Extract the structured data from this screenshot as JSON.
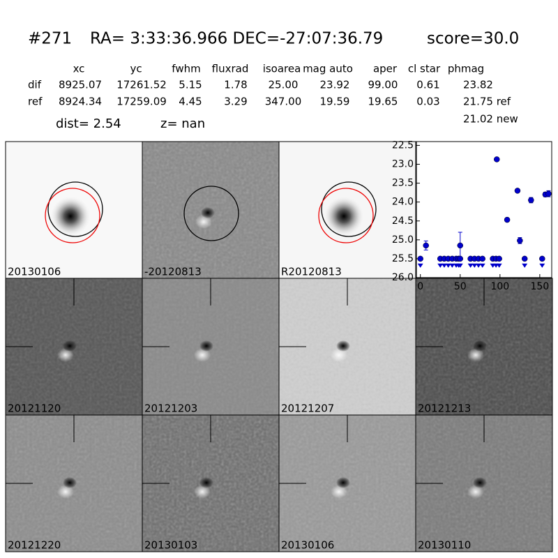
{
  "header": {
    "id": "#271",
    "coords": "RA= 3:33:36.966 DEC=-27:07:36.79",
    "score": "score=30.0"
  },
  "table": {
    "columns": [
      "xc",
      "yc",
      "fwhm",
      "fluxrad",
      "isoarea",
      "mag auto",
      "aper",
      "cl star",
      "phmag"
    ],
    "rows": [
      [
        "dif",
        "8925.07",
        "17261.52",
        "5.15",
        "1.78",
        "25.00",
        "23.92",
        "99.00",
        "0.61",
        "23.82"
      ],
      [
        "ref",
        "8924.34",
        "17259.09",
        "4.45",
        "3.29",
        "347.00",
        "19.59",
        "19.65",
        "0.03",
        "21.75 ref"
      ]
    ],
    "extra": "21.02 new"
  },
  "dist": "dist=  2.54",
  "z": "z=   nan",
  "panels": [
    {
      "label": "20130106",
      "color": "#000000"
    },
    {
      "label": "-20120813",
      "color": "#000000"
    },
    {
      "label": "R20120813",
      "color": "#000000"
    },
    {
      "label": "20121120",
      "color": "#000000"
    },
    {
      "label": "20121203",
      "color": "#000000"
    },
    {
      "label": "20121207",
      "color": "#000000"
    },
    {
      "label": "20121213",
      "color": "#000000"
    },
    {
      "label": "20121220",
      "color": "#000000"
    },
    {
      "label": "20130103",
      "color": "#000000"
    },
    {
      "label": "20130106",
      "color": "#ff0000"
    },
    {
      "label": "20130110",
      "color": "#000000"
    }
  ],
  "chart_data": {
    "type": "scatter",
    "color": "#0000cc",
    "xlim": [
      -5,
      165
    ],
    "xticks": [
      0,
      50,
      100,
      150
    ],
    "ylim": [
      26.0,
      22.4
    ],
    "yticks": [
      22.5,
      {
        "value": 23.0,
        "label": "23.0"
      },
      23.5,
      {
        "value": 24.0,
        "label": "24.0"
      },
      24.5,
      {
        "value": 25.0,
        "label": "25.0"
      },
      25.5,
      {
        "value": 26.0,
        "label": "26.0"
      }
    ],
    "series": [
      {
        "x": [
          7,
          50,
          96,
          109,
          122,
          125,
          139,
          157,
          161
        ],
        "values": [
          25.15,
          25.15,
          22.87,
          24.47,
          23.7,
          25.02,
          23.95,
          23.8,
          23.78
        ],
        "errors": [
          0.12,
          0.35,
          0.03,
          0.05,
          0.04,
          0.08,
          0.07,
          0.06,
          0.08
        ]
      },
      {
        "x": [
          0,
          25,
          30,
          35,
          40,
          45,
          48,
          50,
          63,
          68,
          73,
          78,
          91,
          95,
          99,
          131,
          153
        ],
        "values": [
          25.5,
          25.5,
          25.5,
          25.5,
          25.5,
          25.5,
          25.5,
          25.5,
          25.5,
          25.5,
          25.5,
          25.5,
          25.5,
          25.5,
          25.5,
          25.5,
          25.5
        ],
        "limits": true
      }
    ]
  }
}
